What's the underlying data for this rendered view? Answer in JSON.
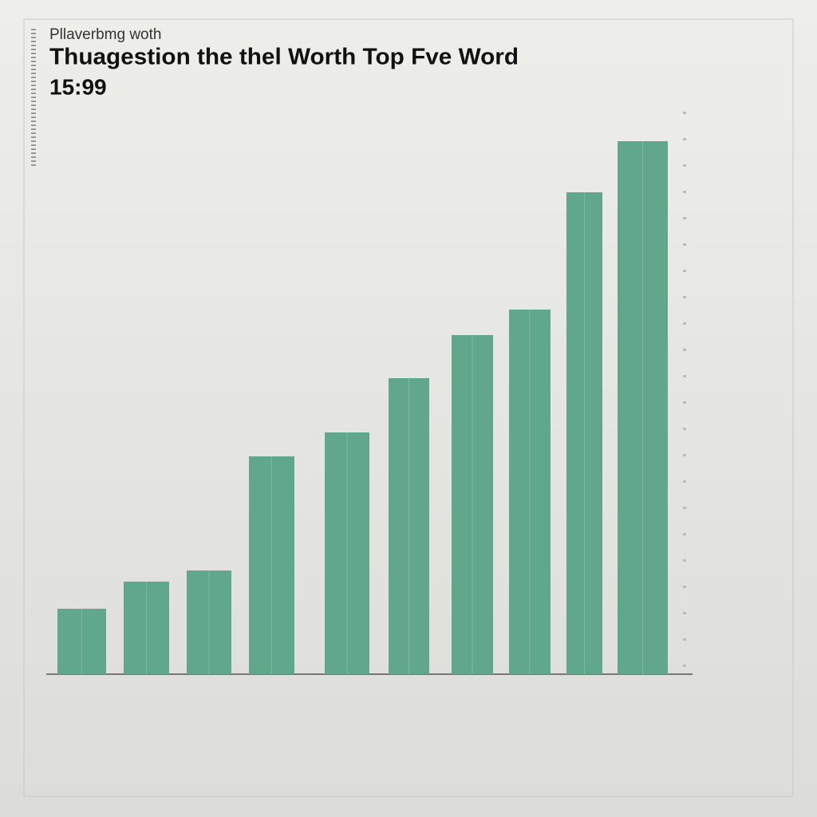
{
  "chart_data": {
    "type": "bar",
    "subtitle": "Pllaverbmg woth",
    "title": "Thuagestion the thel Worth Top Fve Word",
    "annotation": "15:99",
    "categories": [
      null,
      null,
      null,
      null,
      null,
      null,
      null,
      null,
      null,
      null
    ],
    "values": [
      82,
      116,
      130,
      273,
      303,
      371,
      425,
      457,
      604,
      668
    ],
    "color": "#60a78b",
    "ylim": [
      0,
      720
    ]
  }
}
